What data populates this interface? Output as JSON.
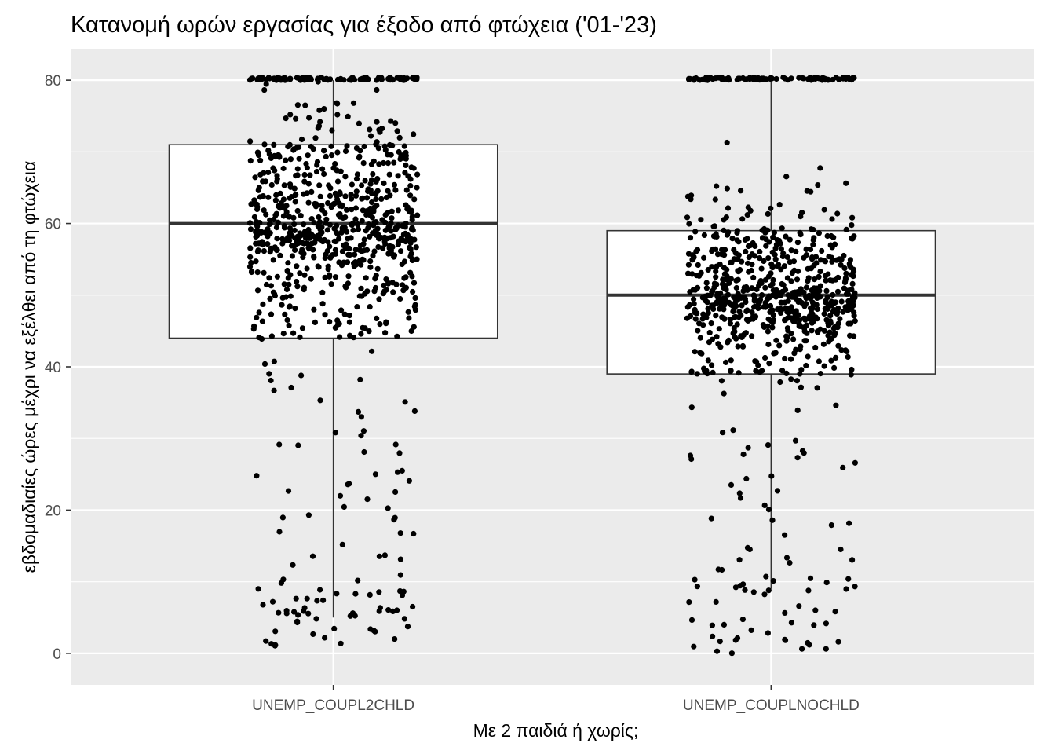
{
  "chart_data": {
    "type": "box",
    "title": "Κατανομή ωρών εργασίας για έξοδο από φτώχεια ('01-'23)",
    "xlabel": "Με 2 παιδιά ή χωρίς;",
    "ylabel": "εβδομαδιαίες ώρες μέχρι να εξέλθει από τη φτώχεια",
    "categories": [
      "UNEMP_COUPL2CHLD",
      "UNEMP_COUPLNOCHLD"
    ],
    "ylim": [
      -4.4,
      84.4
    ],
    "yticks": [
      0,
      20,
      40,
      60,
      80
    ],
    "grid": true,
    "legend": "none",
    "boxes": [
      {
        "category": "UNEMP_COUPL2CHLD",
        "whisker_low": 5,
        "q1": 44,
        "median": 60,
        "q3": 71,
        "whisker_high": 80
      },
      {
        "category": "UNEMP_COUPLNOCHLD",
        "whisker_low": 9,
        "q1": 39,
        "median": 50,
        "q3": 59,
        "whisker_high": 80
      }
    ],
    "jitter_points": [
      {
        "category": "UNEMP_COUPL2CHLD",
        "approx_count": 900,
        "jitter_width": 0.4
      },
      {
        "category": "UNEMP_COUPLNOCHLD",
        "approx_count": 850,
        "jitter_width": 0.4
      }
    ],
    "colors": {
      "panel": "#ebebeb",
      "grid": "#ffffff",
      "box_fill": "#ffffff",
      "box_line": "#333333",
      "point": "#000000"
    }
  }
}
